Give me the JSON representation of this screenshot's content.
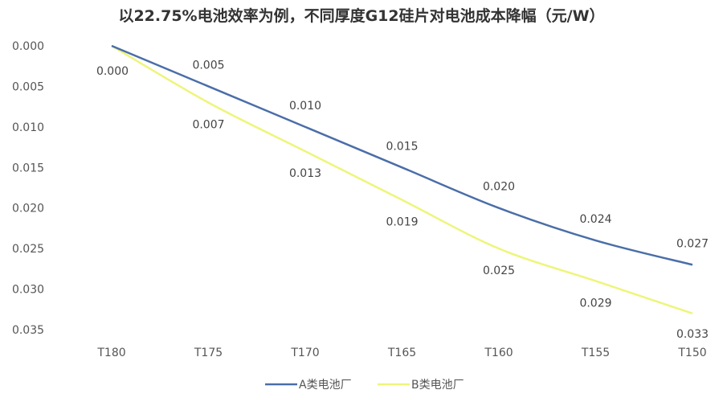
{
  "chart_data": {
    "type": "line",
    "title": "以22.75%电池效率为例，不同厚度G12硅片对电池成本降幅（元/W）",
    "xlabel": "",
    "ylabel": "",
    "categories": [
      "T180",
      "T175",
      "T170",
      "T165",
      "T160",
      "T155",
      "T150"
    ],
    "y_ticks": [
      "0.000",
      "0.005",
      "0.010",
      "0.015",
      "0.020",
      "0.025",
      "0.030",
      "0.035"
    ],
    "ylim": [
      0,
      0.035
    ],
    "y_inverted": true,
    "grid": false,
    "legend_position": "bottom",
    "series": [
      {
        "name": "A类电池厂",
        "color": "#4a6ea8",
        "values": [
          0.0,
          0.005,
          0.01,
          0.015,
          0.02,
          0.024,
          0.027
        ],
        "labels": [
          "",
          "0.005",
          "0.010",
          "0.015",
          "0.020",
          "0.024",
          "0.027"
        ]
      },
      {
        "name": "B类电池厂",
        "color": "#eef57a",
        "values": [
          0.0,
          0.007,
          0.013,
          0.019,
          0.025,
          0.029,
          0.033
        ],
        "labels": [
          "0.000",
          "0.007",
          "0.013",
          "0.019",
          "0.025",
          "0.029",
          "0.033"
        ]
      }
    ]
  }
}
